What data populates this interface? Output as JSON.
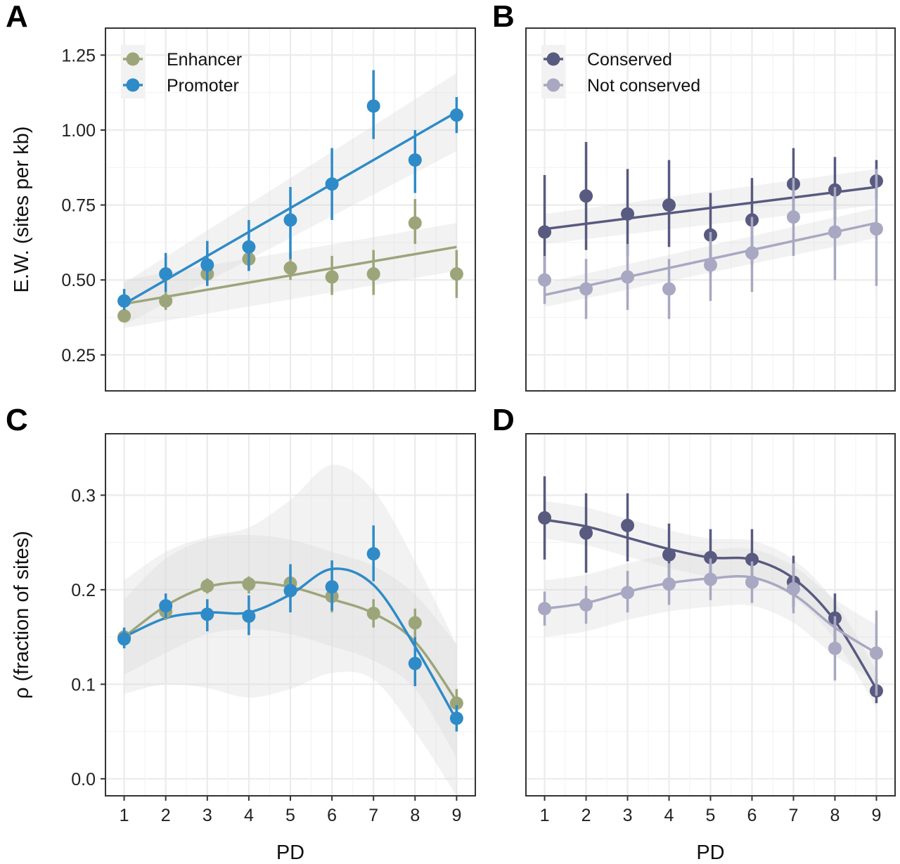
{
  "colors": {
    "enhancer": "#9ca57a",
    "promoter": "#2e8bc7",
    "conserved": "#595a80",
    "not_conserved": "#a8a8c2",
    "ribbon": "#d9d9d9",
    "grid": "#ebebeb",
    "frame": "#333333"
  },
  "chart_data": [
    {
      "panel": "A",
      "type": "scatter",
      "xlabel": "",
      "ylabel": "E.W. (sites per kb)",
      "x": [
        1,
        2,
        3,
        4,
        5,
        6,
        7,
        8,
        9
      ],
      "x_ticks": [
        "1",
        "2",
        "3",
        "4",
        "5",
        "6",
        "7",
        "8",
        "9"
      ],
      "xlim": [
        0.55,
        9.45
      ],
      "ylim": [
        0.13,
        1.34
      ],
      "y_ticks": [
        "0.25",
        "0.50",
        "0.75",
        "1.00",
        "1.25"
      ],
      "y_tick_values": [
        0.25,
        0.5,
        0.75,
        1.0,
        1.25
      ],
      "grid": true,
      "legend": {
        "position": "top-left",
        "entries": [
          "Enhancer",
          "Promoter"
        ]
      },
      "fit": "linear",
      "series": [
        {
          "name": "Enhancer",
          "color_key": "enhancer",
          "values": [
            0.38,
            0.43,
            0.52,
            0.57,
            0.54,
            0.51,
            0.52,
            0.69,
            0.52
          ],
          "err_low": [
            0.37,
            0.4,
            0.49,
            0.53,
            0.5,
            0.45,
            0.45,
            0.62,
            0.44
          ],
          "err_high": [
            0.4,
            0.46,
            0.55,
            0.61,
            0.59,
            0.58,
            0.6,
            0.77,
            0.6
          ],
          "fit_start": 0.42,
          "fit_end": 0.61,
          "ci_start": 0.08,
          "ci_end": 0.08
        },
        {
          "name": "Promoter",
          "color_key": "promoter",
          "values": [
            0.43,
            0.52,
            0.55,
            0.61,
            0.7,
            0.82,
            1.08,
            0.9,
            1.05
          ],
          "err_low": [
            0.4,
            0.46,
            0.48,
            0.53,
            0.57,
            0.7,
            0.97,
            0.79,
            0.99
          ],
          "err_high": [
            0.47,
            0.59,
            0.63,
            0.7,
            0.81,
            0.94,
            1.2,
            1.0,
            1.11
          ],
          "fit_start": 0.42,
          "fit_end": 1.06,
          "ci_start": 0.07,
          "ci_end": 0.13
        }
      ]
    },
    {
      "panel": "B",
      "type": "scatter",
      "xlabel": "",
      "ylabel": "",
      "x": [
        1,
        2,
        3,
        4,
        5,
        6,
        7,
        8,
        9
      ],
      "x_ticks": [
        "1",
        "2",
        "3",
        "4",
        "5",
        "6",
        "7",
        "8",
        "9"
      ],
      "xlim": [
        0.55,
        9.45
      ],
      "ylim": [
        0.13,
        1.34
      ],
      "y_tick_values": [
        0.25,
        0.5,
        0.75,
        1.0,
        1.25
      ],
      "grid": true,
      "legend": {
        "position": "top-left",
        "entries": [
          "Conserved",
          "Not conserved"
        ]
      },
      "fit": "linear",
      "series": [
        {
          "name": "Conserved",
          "color_key": "conserved",
          "values": [
            0.66,
            0.78,
            0.72,
            0.75,
            0.65,
            0.7,
            0.82,
            0.8,
            0.83
          ],
          "err_low": [
            0.48,
            0.6,
            0.58,
            0.61,
            0.52,
            0.55,
            0.7,
            0.7,
            0.77
          ],
          "err_high": [
            0.85,
            0.96,
            0.87,
            0.9,
            0.79,
            0.84,
            0.94,
            0.91,
            0.9
          ],
          "fit_start": 0.67,
          "fit_end": 0.81,
          "ci_start": 0.05,
          "ci_end": 0.06
        },
        {
          "name": "Not conserved",
          "color_key": "not_conserved",
          "values": [
            0.5,
            0.47,
            0.51,
            0.47,
            0.55,
            0.59,
            0.71,
            0.66,
            0.67
          ],
          "err_low": [
            0.42,
            0.37,
            0.4,
            0.37,
            0.43,
            0.46,
            0.58,
            0.5,
            0.48
          ],
          "err_high": [
            0.58,
            0.57,
            0.62,
            0.57,
            0.66,
            0.71,
            0.84,
            0.81,
            0.87
          ],
          "fit_start": 0.45,
          "fit_end": 0.69,
          "ci_start": 0.04,
          "ci_end": 0.05
        }
      ]
    },
    {
      "panel": "C",
      "type": "scatter",
      "xlabel": "PD",
      "ylabel": "ρ  (fraction of sites)",
      "x": [
        1,
        2,
        3,
        4,
        5,
        6,
        7,
        8,
        9
      ],
      "x_ticks": [
        "1",
        "2",
        "3",
        "4",
        "5",
        "6",
        "7",
        "8",
        "9"
      ],
      "xlim": [
        0.55,
        9.45
      ],
      "ylim": [
        -0.018,
        0.365
      ],
      "y_ticks": [
        "0.0",
        "0.1",
        "0.2",
        "0.3"
      ],
      "y_tick_values": [
        0.0,
        0.1,
        0.2,
        0.3
      ],
      "grid": true,
      "fit": "smooth",
      "series": [
        {
          "name": "Enhancer",
          "color_key": "enhancer",
          "values": [
            0.15,
            0.177,
            0.204,
            0.206,
            0.207,
            0.193,
            0.175,
            0.165,
            0.08
          ],
          "err_low": [
            0.142,
            0.168,
            0.196,
            0.196,
            0.192,
            0.176,
            0.16,
            0.15,
            0.07
          ],
          "err_high": [
            0.158,
            0.186,
            0.212,
            0.214,
            0.222,
            0.206,
            0.19,
            0.18,
            0.095
          ],
          "fit": [
            0.15,
            0.183,
            0.203,
            0.208,
            0.203,
            0.19,
            0.175,
            0.145,
            0.082
          ],
          "ci": [
            0.04,
            0.05,
            0.05,
            0.05,
            0.05,
            0.05,
            0.05,
            0.05,
            0.06
          ]
        },
        {
          "name": "Promoter",
          "color_key": "promoter",
          "values": [
            0.148,
            0.183,
            0.174,
            0.172,
            0.199,
            0.203,
            0.238,
            0.122,
            0.064
          ],
          "err_low": [
            0.138,
            0.17,
            0.156,
            0.152,
            0.176,
            0.178,
            0.209,
            0.098,
            0.05
          ],
          "err_high": [
            0.16,
            0.196,
            0.19,
            0.194,
            0.227,
            0.231,
            0.268,
            0.15,
            0.078
          ],
          "fit": [
            0.15,
            0.17,
            0.176,
            0.176,
            0.195,
            0.222,
            0.205,
            0.14,
            0.062
          ],
          "ci": [
            0.06,
            0.07,
            0.08,
            0.09,
            0.1,
            0.11,
            0.1,
            0.09,
            0.08
          ]
        }
      ]
    },
    {
      "panel": "D",
      "type": "scatter",
      "xlabel": "PD",
      "ylabel": "",
      "x": [
        1,
        2,
        3,
        4,
        5,
        6,
        7,
        8,
        9
      ],
      "x_ticks": [
        "1",
        "2",
        "3",
        "4",
        "5",
        "6",
        "7",
        "8",
        "9"
      ],
      "xlim": [
        0.55,
        9.45
      ],
      "ylim": [
        -0.018,
        0.365
      ],
      "y_tick_values": [
        0.0,
        0.1,
        0.2,
        0.3
      ],
      "grid": true,
      "fit": "smooth",
      "series": [
        {
          "name": "Conserved",
          "color_key": "conserved",
          "values": [
            0.276,
            0.26,
            0.268,
            0.237,
            0.234,
            0.232,
            0.208,
            0.17,
            0.093
          ],
          "err_low": [
            0.232,
            0.218,
            0.23,
            0.205,
            0.207,
            0.205,
            0.182,
            0.145,
            0.08
          ],
          "err_high": [
            0.32,
            0.302,
            0.302,
            0.27,
            0.264,
            0.264,
            0.236,
            0.196,
            0.106
          ],
          "fit": [
            0.274,
            0.267,
            0.255,
            0.243,
            0.234,
            0.232,
            0.212,
            0.167,
            0.095
          ],
          "ci": [
            0.02,
            0.02,
            0.02,
            0.02,
            0.02,
            0.02,
            0.02,
            0.02,
            0.02
          ]
        },
        {
          "name": "Not conserved",
          "color_key": "not_conserved",
          "values": [
            0.18,
            0.184,
            0.197,
            0.206,
            0.211,
            0.208,
            0.201,
            0.138,
            0.133
          ],
          "err_low": [
            0.162,
            0.164,
            0.176,
            0.184,
            0.189,
            0.186,
            0.175,
            0.104,
            0.088
          ],
          "err_high": [
            0.198,
            0.204,
            0.22,
            0.228,
            0.233,
            0.23,
            0.228,
            0.172,
            0.178
          ],
          "fit": [
            0.18,
            0.186,
            0.198,
            0.207,
            0.212,
            0.213,
            0.195,
            0.16,
            0.133
          ],
          "ci": [
            0.03,
            0.03,
            0.03,
            0.03,
            0.03,
            0.03,
            0.03,
            0.03,
            0.03
          ]
        }
      ]
    }
  ]
}
